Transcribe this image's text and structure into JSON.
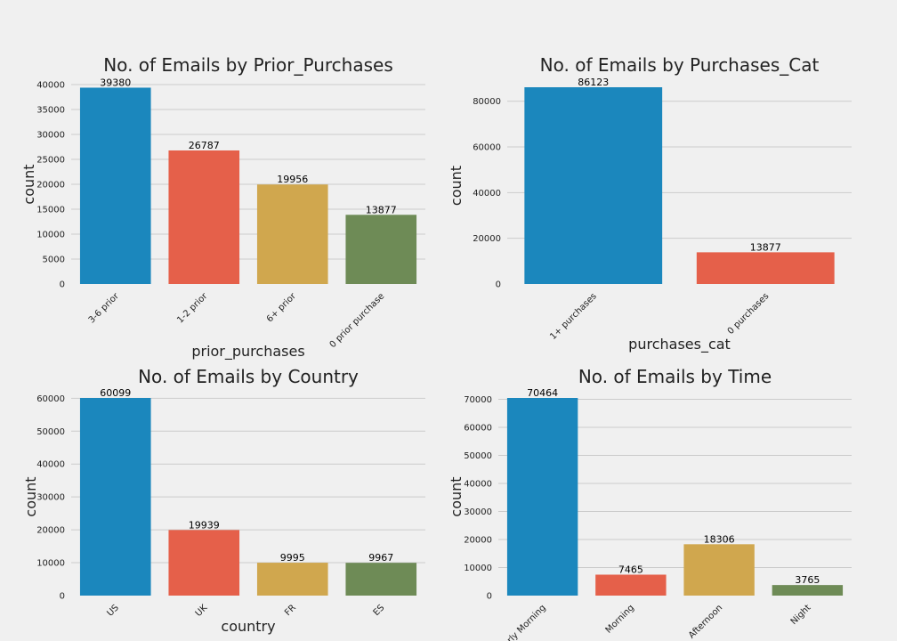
{
  "colors": {
    "background": "#f0f0f0",
    "grid": "#cbcbcb",
    "palette": [
      "#1b87bd",
      "#e5604a",
      "#d0a74e",
      "#6e8b56"
    ]
  },
  "chart_data": [
    {
      "type": "bar",
      "title": "No. of Emails by Prior_Purchases",
      "xlabel": "prior_purchases",
      "ylabel": "count",
      "categories": [
        "3-6 prior",
        "1-2 prior",
        "6+ prior",
        "0 prior purchase"
      ],
      "values": [
        39380,
        26787,
        19956,
        13877
      ],
      "ylim": [
        0,
        40000
      ],
      "yticks": [
        0,
        5000,
        10000,
        15000,
        20000,
        25000,
        30000,
        35000,
        40000
      ],
      "grid": true
    },
    {
      "type": "bar",
      "title": "No. of Emails by Purchases_Cat",
      "xlabel": "purchases_cat",
      "ylabel": "count",
      "categories": [
        "1+ purchases",
        "0 purchases"
      ],
      "values": [
        86123,
        13877
      ],
      "ylim": [
        0,
        86123
      ],
      "yticks": [
        0,
        20000,
        40000,
        60000,
        80000
      ],
      "grid": true
    },
    {
      "type": "bar",
      "title": "No. of Emails by Country",
      "xlabel": "country",
      "ylabel": "count",
      "categories": [
        "US",
        "UK",
        "FR",
        "ES"
      ],
      "values": [
        60099,
        19939,
        9995,
        9967
      ],
      "ylim": [
        0,
        60099
      ],
      "yticks": [
        0,
        10000,
        20000,
        30000,
        40000,
        50000,
        60000
      ],
      "grid": true
    },
    {
      "type": "bar",
      "title": "No. of Emails by Time",
      "xlabel": "",
      "ylabel": "count",
      "categories": [
        "Early Morning",
        "Morning",
        "Afternoon",
        "Night"
      ],
      "values": [
        70464,
        7465,
        18306,
        3765
      ],
      "ylim": [
        0,
        70464
      ],
      "yticks": [
        0,
        10000,
        20000,
        30000,
        40000,
        50000,
        60000,
        70000
      ],
      "grid": true
    }
  ]
}
